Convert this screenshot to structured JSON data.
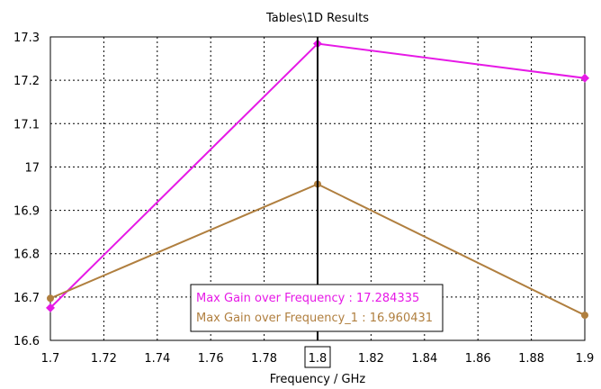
{
  "chart_data": {
    "type": "line",
    "title": "Tables\\1D Results",
    "xlabel": "Frequency / GHz",
    "ylabel": "",
    "xlim": [
      1.7,
      1.9
    ],
    "ylim": [
      16.6,
      17.3
    ],
    "x_ticks": [
      "1.7",
      "1.72",
      "1.74",
      "1.76",
      "1.78",
      "1.8",
      "1.82",
      "1.84",
      "1.86",
      "1.88",
      "1.9"
    ],
    "y_ticks": [
      "16.6",
      "16.7",
      "16.8",
      "16.9",
      "17",
      "17.1",
      "17.2",
      "17.3"
    ],
    "grid": true,
    "marker_x": 1.8,
    "marker_label": "1.8",
    "legend_position": "bottom-center",
    "series": [
      {
        "name": "Max Gain over Frequency",
        "readout": "Max Gain over Frequency : 17.284335",
        "color": "#e619e6",
        "marker": "diamond",
        "x": [
          1.7,
          1.8,
          1.9
        ],
        "y": [
          16.675,
          17.284335,
          17.205
        ]
      },
      {
        "name": "Max Gain over Frequency_1",
        "readout": "Max Gain over Frequency_1 : 16.960431",
        "color": "#b07f3f",
        "marker": "circle",
        "x": [
          1.7,
          1.8,
          1.9
        ],
        "y": [
          16.697,
          16.960431,
          16.658
        ]
      }
    ]
  }
}
